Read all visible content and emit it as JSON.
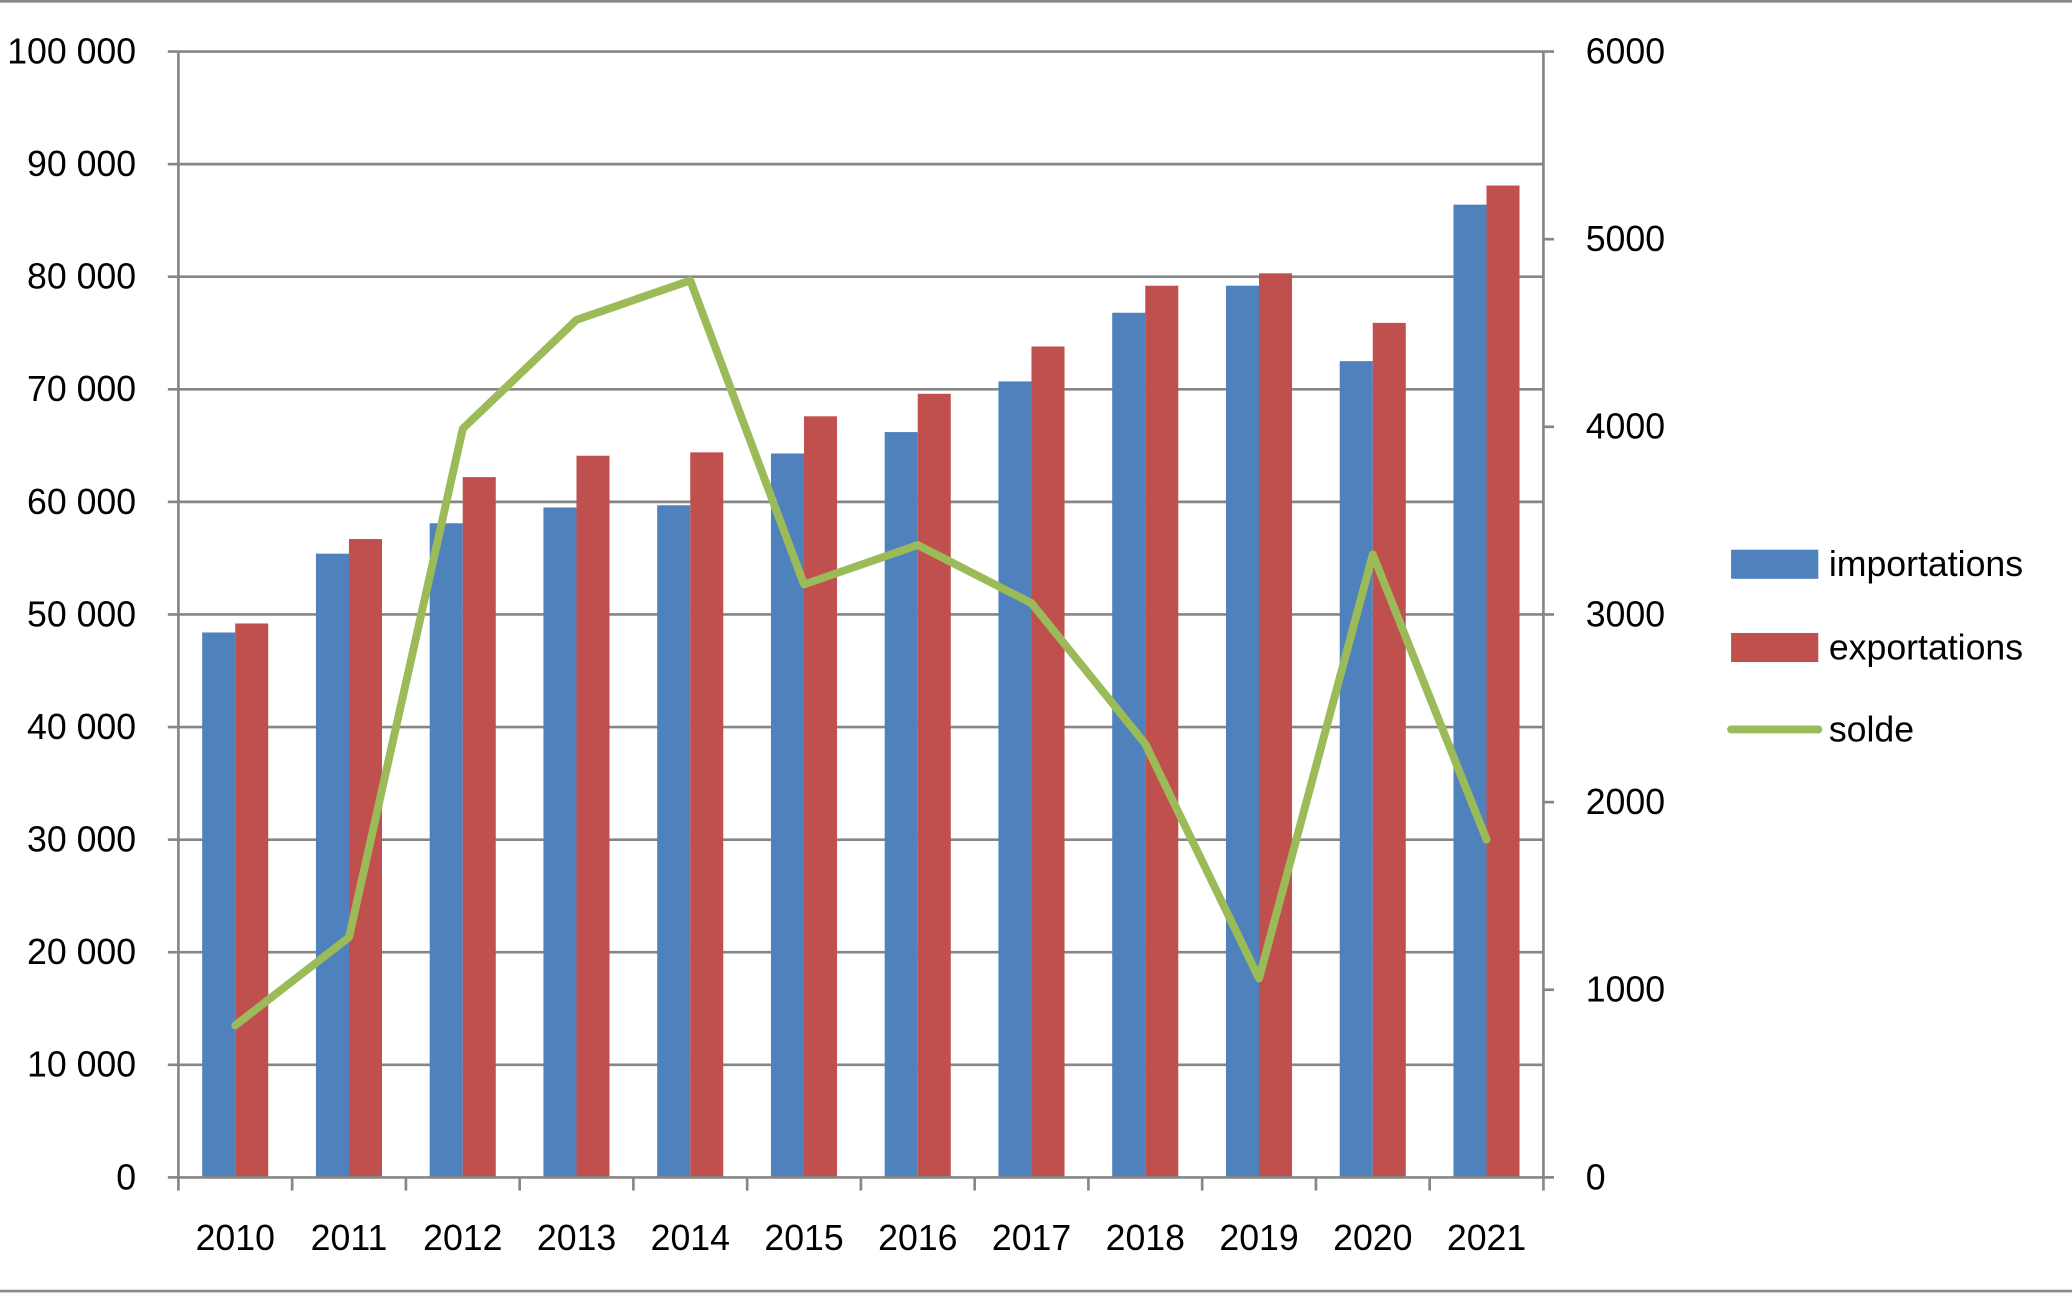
{
  "chart_data": {
    "type": "bar",
    "categories": [
      "2010",
      "2011",
      "2012",
      "2013",
      "2014",
      "2015",
      "2016",
      "2017",
      "2018",
      "2019",
      "2020",
      "2021"
    ],
    "series": [
      {
        "name": "importations",
        "type": "bar",
        "axis": "left",
        "color": "#4F81BD",
        "values": [
          48400,
          55400,
          58100,
          59500,
          59700,
          64300,
          66200,
          70700,
          76800,
          79200,
          72500,
          86400
        ]
      },
      {
        "name": "exportations",
        "type": "bar",
        "axis": "left",
        "color": "#C0504D",
        "values": [
          49200,
          56700,
          62200,
          64100,
          64400,
          67600,
          69600,
          73800,
          79200,
          80300,
          75900,
          88100
        ]
      },
      {
        "name": "solde",
        "type": "line",
        "axis": "right",
        "color": "#9BBB59",
        "values": [
          810,
          1280,
          3990,
          4570,
          4780,
          3160,
          3370,
          3060,
          2310,
          1060,
          3320,
          1800
        ]
      }
    ],
    "y_left": {
      "range": [
        0,
        100000
      ],
      "ticks": [
        "0",
        "10 000",
        "20 000",
        "30 000",
        "40 000",
        "50 000",
        "60 000",
        "70 000",
        "80 000",
        "90 000",
        "100 000"
      ]
    },
    "y_right": {
      "range": [
        0,
        6000
      ],
      "ticks": [
        "0",
        "1000",
        "2000",
        "3000",
        "4000",
        "5000",
        "6000"
      ]
    },
    "grid": true,
    "legend": "right"
  }
}
